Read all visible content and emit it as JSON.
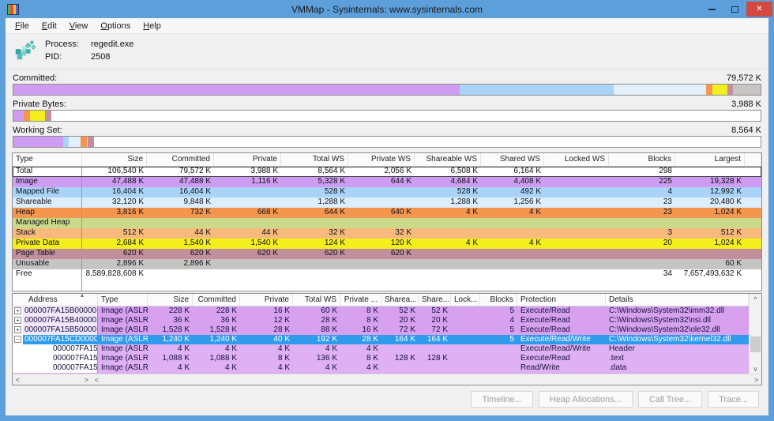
{
  "window": {
    "title": "VMMap - Sysinternals: www.sysinternals.com",
    "close_glyph": "✕"
  },
  "menu": {
    "items": [
      "File",
      "Edit",
      "View",
      "Options",
      "Help"
    ]
  },
  "process": {
    "label": "Process:",
    "name": "regedit.exe",
    "pid_label": "PID:",
    "pid": "2508"
  },
  "bars": [
    {
      "label": "Committed:",
      "value": "79,572 K",
      "segments": [
        {
          "c": "#CE9CF0",
          "w": 59.7
        },
        {
          "c": "#A9D3F7",
          "w": 20.6
        },
        {
          "c": "#E3F0FB",
          "w": 12.4
        },
        {
          "c": "#F5964F",
          "w": 0.9
        },
        {
          "c": "#F2EF1D",
          "w": 1.95
        },
        {
          "c": "#C28F9D",
          "w": 0.8
        },
        {
          "c": "#C7C4C4",
          "w": 3.65
        }
      ]
    },
    {
      "label": "Private Bytes:",
      "value": "3,988 K",
      "segments": [
        {
          "c": "#CE9CF0",
          "w": 1.4
        },
        {
          "c": "#F5964F",
          "w": 0.85
        },
        {
          "c": "#F2EF1D",
          "w": 2.0
        },
        {
          "c": "#C28F9D",
          "w": 0.78
        }
      ]
    },
    {
      "label": "Working Set:",
      "value": "8,564 K",
      "segments": [
        {
          "c": "#CE9CF0",
          "w": 6.7
        },
        {
          "c": "#A9D3F7",
          "w": 0.66
        },
        {
          "c": "#E3F0FB",
          "w": 1.62
        },
        {
          "c": "#F5964F",
          "w": 0.81
        },
        {
          "c": "#F2EF1D",
          "w": 0.2
        },
        {
          "c": "#C28F9D",
          "w": 0.78
        }
      ]
    }
  ],
  "summary_table": {
    "columns": [
      "Type",
      "Size",
      "Committed",
      "Private",
      "Total WS",
      "Private WS",
      "Shareable WS",
      "Shared WS",
      "Locked WS",
      "Blocks",
      "Largest"
    ],
    "rows": [
      {
        "type": "Total",
        "color": "#FFFFFF",
        "focus": true,
        "values": [
          "106,540 K",
          "79,572 K",
          "3,988 K",
          "8,564 K",
          "2,056 K",
          "6,508 K",
          "6,164 K",
          "",
          "298",
          ""
        ]
      },
      {
        "type": "Image",
        "color": "#CE9CF0",
        "values": [
          "47,488 K",
          "47,488 K",
          "1,116 K",
          "5,328 K",
          "644 K",
          "4,684 K",
          "4,408 K",
          "",
          "225",
          "19,328 K"
        ]
      },
      {
        "type": "Mapped File",
        "color": "#A9D4F7",
        "values": [
          "16,404 K",
          "16,404 K",
          "",
          "528 K",
          "",
          "528 K",
          "492 K",
          "",
          "4",
          "12,992 K"
        ]
      },
      {
        "type": "Shareable",
        "color": "#DCEDFB",
        "values": [
          "32,120 K",
          "9,848 K",
          "",
          "1,288 K",
          "",
          "1,288 K",
          "1,256 K",
          "",
          "23",
          "20,480 K"
        ]
      },
      {
        "type": "Heap",
        "color": "#F5964F",
        "values": [
          "3,816 K",
          "732 K",
          "668 K",
          "644 K",
          "640 K",
          "4 K",
          "4 K",
          "",
          "23",
          "1,024 K"
        ]
      },
      {
        "type": "Managed Heap",
        "color": "#CBD98A",
        "values": [
          "",
          "",
          "",
          "",
          "",
          "",
          "",
          "",
          "",
          ""
        ]
      },
      {
        "type": "Stack",
        "color": "#F8BA7C",
        "values": [
          "512 K",
          "44 K",
          "44 K",
          "32 K",
          "32 K",
          "",
          "",
          "",
          "3",
          "512 K"
        ]
      },
      {
        "type": "Private Data",
        "color": "#F2EF1D",
        "values": [
          "2,684 K",
          "1,540 K",
          "1,540 K",
          "124 K",
          "120 K",
          "4 K",
          "4 K",
          "",
          "20",
          "1,024 K"
        ]
      },
      {
        "type": "Page Table",
        "color": "#C28F9D",
        "values": [
          "620 K",
          "620 K",
          "620 K",
          "620 K",
          "620 K",
          "",
          "",
          "",
          "",
          ""
        ]
      },
      {
        "type": "Unusable",
        "color": "#C7C4C4",
        "values": [
          "2,896 K",
          "2,896 K",
          "",
          "",
          "",
          "",
          "",
          "",
          "",
          "60 K"
        ]
      },
      {
        "type": "Free",
        "color": "#FFFFFF",
        "values": [
          "8,589,828,608 K",
          "",
          "",
          "",
          "",
          "",
          "",
          "",
          "34",
          "7,657,493,632 K"
        ]
      }
    ]
  },
  "detail_table": {
    "columns": [
      "Address",
      "Type",
      "Size",
      "Committed",
      "Private",
      "Total WS",
      "Private ...",
      "Sharea...",
      "Share...",
      "Lock...",
      "Blocks",
      "Protection",
      "Details"
    ],
    "rows": [
      {
        "expand": "+",
        "address": "000007FA15B00000",
        "type": "Image (ASLR)",
        "values": [
          "228 K",
          "228 K",
          "16 K",
          "60 K",
          "8 K",
          "52 K",
          "52 K",
          "",
          "5"
        ],
        "protection": "Execute/Read",
        "details": "C:\\Windows\\System32\\imm32.dll"
      },
      {
        "expand": "+",
        "address": "000007FA15B40000",
        "type": "Image (ASLR)",
        "values": [
          "36 K",
          "36 K",
          "12 K",
          "28 K",
          "8 K",
          "20 K",
          "20 K",
          "",
          "4"
        ],
        "protection": "Execute/Read",
        "details": "C:\\Windows\\System32\\nsi.dll"
      },
      {
        "expand": "+",
        "address": "000007FA15B50000",
        "type": "Image (ASLR)",
        "values": [
          "1,528 K",
          "1,528 K",
          "28 K",
          "88 K",
          "16 K",
          "72 K",
          "72 K",
          "",
          "5"
        ],
        "protection": "Execute/Read",
        "details": "C:\\Windows\\System32\\ole32.dll"
      },
      {
        "expand": "−",
        "address": "000007FA15CD0000",
        "type": "Image (ASLR)",
        "selected": true,
        "values": [
          "1,240 K",
          "1,240 K",
          "40 K",
          "192 K",
          "28 K",
          "164 K",
          "164 K",
          "",
          "5"
        ],
        "protection": "Execute/Read/Write",
        "details": "C:\\Windows\\System32\\kernel32.dll"
      },
      {
        "child": true,
        "address": "000007FA15CD0000",
        "type": "Image (ASLR)",
        "values": [
          "4 K",
          "4 K",
          "4 K",
          "4 K",
          "4 K",
          "",
          "",
          "",
          ""
        ],
        "protection": "Execute/Read/Write",
        "details": "Header"
      },
      {
        "child": true,
        "address": "000007FA15CD1000",
        "type": "Image (ASLR)",
        "values": [
          "1,088 K",
          "1,088 K",
          "8 K",
          "136 K",
          "8 K",
          "128 K",
          "128 K",
          "",
          ""
        ],
        "protection": "Execute/Read",
        "details": ".text"
      },
      {
        "child": true,
        "address": "000007FA15DE1000",
        "type": "Image (ASLR)",
        "values": [
          "4 K",
          "4 K",
          "4 K",
          "4 K",
          "4 K",
          "",
          "",
          "",
          ""
        ],
        "protection": "Read/Write",
        "details": ".data"
      }
    ]
  },
  "scrollbars": {
    "up": "^",
    "down": "v",
    "left": "<",
    "right": ">"
  },
  "footer": {
    "buttons": [
      "Timeline...",
      "Heap Allocations...",
      "Call Tree...",
      "Trace..."
    ]
  }
}
